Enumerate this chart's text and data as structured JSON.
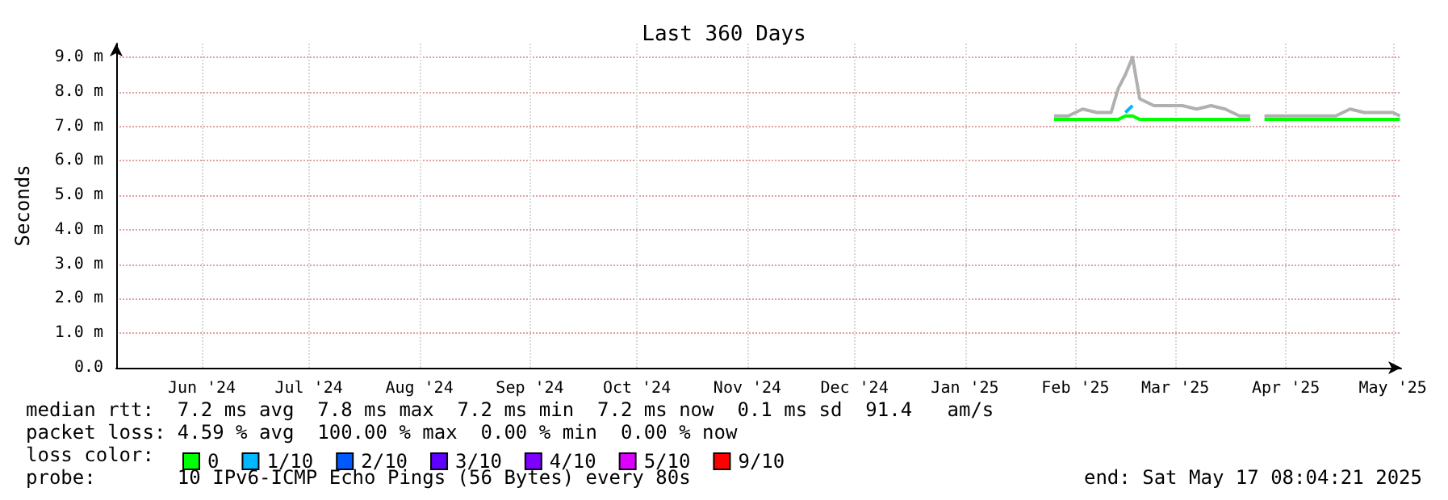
{
  "chart_data": {
    "type": "line",
    "title": "Last 360 Days",
    "ylabel": "Seconds",
    "xlim": [
      "2024-05-22",
      "2025-05-17T08:04"
    ],
    "xticks": [
      {
        "value": "2024-06-15",
        "label": "Jun '24"
      },
      {
        "value": "2024-07-15",
        "label": "Jul '24"
      },
      {
        "value": "2024-08-15",
        "label": "Aug '24"
      },
      {
        "value": "2024-09-15",
        "label": "Sep '24"
      },
      {
        "value": "2024-10-15",
        "label": "Oct '24"
      },
      {
        "value": "2024-11-15",
        "label": "Nov '24"
      },
      {
        "value": "2024-12-15",
        "label": "Dec '24"
      },
      {
        "value": "2025-01-15",
        "label": "Jan '25"
      },
      {
        "value": "2025-02-15",
        "label": "Feb '25"
      },
      {
        "value": "2025-03-15",
        "label": "Mar '25"
      },
      {
        "value": "2025-04-15",
        "label": "Apr '25"
      },
      {
        "value": "2025-05-15",
        "label": "May '25"
      }
    ],
    "ylim": [
      0,
      9.4
    ],
    "yticks": [
      {
        "value": 0,
        "label": "0.0"
      },
      {
        "value": 1,
        "label": "1.0 m"
      },
      {
        "value": 2,
        "label": "2.0 m"
      },
      {
        "value": 3,
        "label": "3.0 m"
      },
      {
        "value": 4,
        "label": "4.0 m"
      },
      {
        "value": 5,
        "label": "5.0 m"
      },
      {
        "value": 6,
        "label": "6.0 m"
      },
      {
        "value": 7,
        "label": "7.0 m"
      },
      {
        "value": 8,
        "label": "8.0 m"
      },
      {
        "value": 9,
        "label": "9.0 m"
      }
    ],
    "grid": true,
    "legend": "bottom",
    "legend_title": "loss color:",
    "marker": "none",
    "line_style": "solid",
    "series": [
      {
        "color": "#b0b0b0",
        "x": [
          "2025-02-09",
          "2025-02-13",
          "2025-02-17",
          "2025-02-21",
          "2025-02-25",
          "2025-02-27",
          "2025-03-01",
          "2025-03-03",
          "2025-03-05",
          "2025-03-09",
          "2025-03-13",
          "2025-03-17",
          "2025-03-21",
          "2025-03-25",
          "2025-03-29",
          "2025-04-02",
          "2025-04-05",
          "2025-04-07",
          "2025-04-09",
          "2025-04-13",
          "2025-04-17",
          "2025-04-21",
          "2025-04-25",
          "2025-04-29",
          "2025-05-03",
          "2025-05-07",
          "2025-05-11",
          "2025-05-15",
          "2025-05-17"
        ],
        "values": [
          7.3,
          7.3,
          7.5,
          7.4,
          7.4,
          8.1,
          8.5,
          9.0,
          7.8,
          7.6,
          7.6,
          7.6,
          7.5,
          7.6,
          7.5,
          7.3,
          7.3,
          null,
          7.3,
          7.3,
          7.3,
          7.3,
          7.3,
          7.3,
          7.5,
          7.4,
          7.4,
          7.4,
          7.3
        ]
      },
      {
        "name": "0",
        "color": "#00ff00",
        "x": [
          "2025-02-09",
          "2025-02-13",
          "2025-02-17",
          "2025-02-21",
          "2025-02-25",
          "2025-02-27",
          "2025-03-01",
          "2025-03-03",
          "2025-03-05",
          "2025-03-09",
          "2025-03-13",
          "2025-03-17",
          "2025-03-21",
          "2025-03-25",
          "2025-03-29",
          "2025-04-02",
          "2025-04-05",
          "2025-04-07",
          "2025-04-09",
          "2025-04-13",
          "2025-04-17",
          "2025-04-21",
          "2025-04-25",
          "2025-04-29",
          "2025-05-03",
          "2025-05-07",
          "2025-05-11",
          "2025-05-15",
          "2025-05-17"
        ],
        "values": [
          7.2,
          7.2,
          7.2,
          7.2,
          7.2,
          7.2,
          7.3,
          7.3,
          7.2,
          7.2,
          7.2,
          7.2,
          7.2,
          7.2,
          7.2,
          7.2,
          7.2,
          null,
          7.2,
          7.2,
          7.2,
          7.2,
          7.2,
          7.2,
          7.2,
          7.2,
          7.2,
          7.2,
          7.2
        ]
      },
      {
        "name": "1/10",
        "color": "#00b8ff",
        "x": [
          "2025-03-01",
          "2025-03-03"
        ],
        "values": [
          7.4,
          7.6
        ]
      },
      {
        "name": "2/10",
        "color": "#0059ff"
      },
      {
        "name": "3/10",
        "color": "#5e00ff"
      },
      {
        "name": "4/10",
        "color": "#7e00ff"
      },
      {
        "name": "5/10",
        "color": "#dd00ff"
      },
      {
        "name": "9/10",
        "color": "#ff0000"
      }
    ],
    "annotations": [
      "median rtt:  7.2 ms avg  7.8 ms max  7.2 ms min  7.2 ms now  0.1 ms sd  91.4   am/s",
      "packet loss: 4.59 % avg  100.00 % max  0.00 % min  0.00 % now",
      "probe:       10 IPv6-ICMP Echo Pings (56 Bytes) every 80s",
      "end: Sat May 17 08:04:21 2025"
    ]
  }
}
